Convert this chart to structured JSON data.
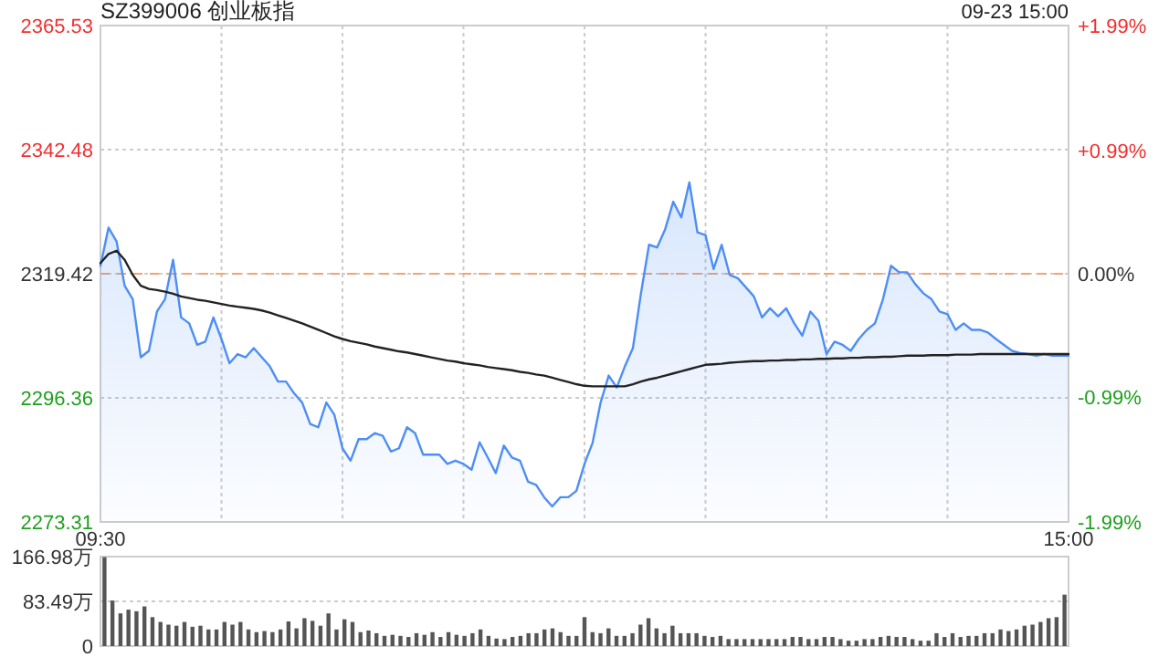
{
  "chart_data": [
    {
      "type": "line",
      "title": "SZ399006 创业板指",
      "annotations": [
        "09-23 15:00"
      ],
      "categories": [
        "09:30",
        null,
        null,
        null,
        null,
        null,
        null,
        null,
        null,
        null,
        null,
        null,
        null,
        null,
        null,
        null,
        null,
        null,
        null,
        null,
        null,
        null,
        null,
        null,
        null,
        null,
        null,
        null,
        null,
        null,
        null,
        null,
        null,
        null,
        null,
        null,
        null,
        null,
        null,
        null,
        null,
        null,
        null,
        null,
        null,
        null,
        null,
        null,
        null,
        null,
        null,
        null,
        null,
        null,
        null,
        null,
        null,
        null,
        null,
        null,
        null,
        null,
        null,
        null,
        null,
        null,
        null,
        null,
        null,
        null,
        null,
        null,
        null,
        null,
        null,
        null,
        null,
        null,
        null,
        null,
        null,
        null,
        null,
        null,
        null,
        null,
        null,
        null,
        null,
        null,
        null,
        null,
        null,
        null,
        null,
        null,
        null,
        null,
        null,
        null,
        null,
        null,
        null,
        null,
        null,
        null,
        null,
        null,
        null,
        null,
        null,
        null,
        null,
        null,
        null,
        null,
        null,
        null,
        null,
        null,
        "15:00"
      ],
      "ylim": [
        2273.31,
        2365.53
      ],
      "yticks": [
        2273.31,
        2296.36,
        2319.42,
        2342.48,
        2365.53
      ],
      "y2lim": [
        -1.99,
        1.99
      ],
      "y2ticks": [
        {
          "value": -1.99,
          "label": "-1.99%"
        },
        {
          "value": -0.99,
          "label": "-0.99%"
        },
        {
          "value": 0,
          "label": "0.00%"
        },
        {
          "value": 0.99,
          "label": "+0.99%"
        },
        {
          "value": 1.99,
          "label": "+1.99%"
        }
      ],
      "grid": true,
      "ref_lines": [
        {
          "axis": "y",
          "value": 2319.42,
          "color": "#f4a470",
          "line_style": "dashed"
        }
      ],
      "series": [
        {
          "type": "area",
          "color": "#4d8ef5",
          "values": [
            2320.9,
            2328.0,
            2325.4,
            2317.2,
            2314.7,
            2303.9,
            2305.1,
            2312.4,
            2314.7,
            2322.0,
            2311.3,
            2310.2,
            2306.2,
            2306.8,
            2311.3,
            2307.3,
            2302.8,
            2304.5,
            2303.9,
            2305.6,
            2303.9,
            2302.2,
            2299.4,
            2299.4,
            2297.2,
            2295.5,
            2291.5,
            2290.9,
            2295.5,
            2293.2,
            2287.0,
            2284.7,
            2288.7,
            2288.7,
            2289.8,
            2289.3,
            2286.4,
            2287.0,
            2290.9,
            2289.8,
            2285.8,
            2285.8,
            2285.8,
            2284.1,
            2284.7,
            2284.1,
            2283.0,
            2288.1,
            2285.3,
            2282.4,
            2287.5,
            2285.3,
            2284.7,
            2280.8,
            2280.2,
            2277.9,
            2276.2,
            2277.9,
            2277.9,
            2279.1,
            2284.1,
            2288.0,
            2295.5,
            2300.5,
            2298.3,
            2302.2,
            2305.6,
            2315.8,
            2324.8,
            2324.3,
            2327.7,
            2332.8,
            2329.9,
            2336.4,
            2327.1,
            2326.6,
            2320.3,
            2324.8,
            2319.2,
            2318.6,
            2316.9,
            2315.2,
            2311.3,
            2313.0,
            2311.5,
            2313.0,
            2310.2,
            2307.9,
            2312.4,
            2310.7,
            2304.5,
            2306.8,
            2306.2,
            2305.1,
            2307.3,
            2309.0,
            2310.2,
            2314.7,
            2320.9,
            2319.7,
            2319.7,
            2317.5,
            2315.8,
            2314.7,
            2312.4,
            2311.9,
            2309.0,
            2310.2,
            2309.0,
            2309.0,
            2308.5,
            2307.3,
            2306.2,
            2305.1,
            2304.7,
            2304.5,
            2304.2,
            2304.5,
            2304.2,
            2304.2,
            2304.2
          ]
        },
        {
          "type": "line",
          "color": "#222222",
          "values": [
            2321.4,
            2323.1,
            2323.7,
            2322.0,
            2319.2,
            2317.2,
            2316.6,
            2316.4,
            2316.1,
            2315.7,
            2315.2,
            2314.9,
            2314.6,
            2314.4,
            2314.1,
            2313.8,
            2313.5,
            2313.3,
            2313.1,
            2312.9,
            2312.6,
            2312.2,
            2311.7,
            2311.2,
            2310.7,
            2310.2,
            2309.6,
            2309.0,
            2308.4,
            2307.8,
            2307.3,
            2306.9,
            2306.6,
            2306.3,
            2305.9,
            2305.6,
            2305.3,
            2305.0,
            2304.8,
            2304.5,
            2304.2,
            2303.9,
            2303.6,
            2303.3,
            2303.1,
            2302.8,
            2302.6,
            2302.4,
            2302.1,
            2301.9,
            2301.7,
            2301.5,
            2301.2,
            2301.0,
            2300.7,
            2300.5,
            2300.1,
            2299.7,
            2299.3,
            2298.9,
            2298.6,
            2298.5,
            2298.5,
            2298.5,
            2298.5,
            2298.5,
            2298.9,
            2299.4,
            2299.8,
            2300.1,
            2300.5,
            2300.9,
            2301.3,
            2301.7,
            2302.1,
            2302.5,
            2302.6,
            2302.7,
            2302.9,
            2303.0,
            2303.1,
            2303.2,
            2303.2,
            2303.3,
            2303.3,
            2303.4,
            2303.4,
            2303.5,
            2303.5,
            2303.6,
            2303.6,
            2303.7,
            2303.7,
            2303.8,
            2303.8,
            2303.9,
            2303.9,
            2304.0,
            2304.0,
            2304.1,
            2304.2,
            2304.2,
            2304.2,
            2304.3,
            2304.3,
            2304.3,
            2304.4,
            2304.4,
            2304.4,
            2304.5,
            2304.5,
            2304.5,
            2304.5,
            2304.5,
            2304.5,
            2304.5,
            2304.5,
            2304.5,
            2304.5,
            2304.5,
            2304.5
          ]
        }
      ]
    },
    {
      "type": "bar",
      "tick_labels": "y",
      "grid": "y",
      "categories": [
        null,
        null,
        null,
        null,
        null,
        null,
        null,
        null,
        null,
        null,
        null,
        null,
        null,
        null,
        null,
        null,
        null,
        null,
        null,
        null,
        null,
        null,
        null,
        null,
        null,
        null,
        null,
        null,
        null,
        null,
        null,
        null,
        null,
        null,
        null,
        null,
        null,
        null,
        null,
        null,
        null,
        null,
        null,
        null,
        null,
        null,
        null,
        null,
        null,
        null,
        null,
        null,
        null,
        null,
        null,
        null,
        null,
        null,
        null,
        null,
        null,
        null,
        null,
        null,
        null,
        null,
        null,
        null,
        null,
        null,
        null,
        null,
        null,
        null,
        null,
        null,
        null,
        null,
        null,
        null,
        null,
        null,
        null,
        null,
        null,
        null,
        null,
        null,
        null,
        null,
        null,
        null,
        null,
        null,
        null,
        null,
        null,
        null,
        null,
        null,
        null,
        null,
        null,
        null,
        null,
        null,
        null,
        null,
        null,
        null,
        null,
        null,
        null,
        null,
        null,
        null,
        null,
        null,
        null,
        null,
        null
      ],
      "ylim": [
        0,
        166.98
      ],
      "yticks": [
        0,
        {
          "value": 83.49,
          "label": "83.49万"
        },
        {
          "value": 166.98,
          "label": "166.98万"
        }
      ],
      "series": [
        {
          "color": "#555555",
          "values": [
            166,
            85,
            61,
            68,
            65,
            74,
            54,
            45,
            40,
            38,
            45,
            36,
            38,
            31,
            31,
            45,
            40,
            45,
            31,
            26,
            28,
            26,
            31,
            46,
            33,
            52,
            47,
            38,
            61,
            31,
            50,
            45,
            26,
            29,
            24,
            19,
            21,
            19,
            17,
            24,
            21,
            26,
            17,
            26,
            21,
            19,
            24,
            31,
            19,
            14,
            13,
            17,
            19,
            24,
            24,
            31,
            33,
            26,
            19,
            19,
            54,
            26,
            24,
            33,
            19,
            19,
            24,
            40,
            52,
            33,
            24,
            38,
            24,
            24,
            24,
            19,
            17,
            19,
            13,
            13,
            13,
            13,
            13,
            13,
            13,
            13,
            17,
            17,
            13,
            13,
            17,
            17,
            13,
            10,
            10,
            13,
            13,
            17,
            19,
            17,
            17,
            13,
            10,
            10,
            24,
            17,
            24,
            17,
            19,
            19,
            24,
            24,
            31,
            28,
            31,
            38,
            40,
            45,
            52,
            54,
            96
          ]
        }
      ]
    }
  ]
}
